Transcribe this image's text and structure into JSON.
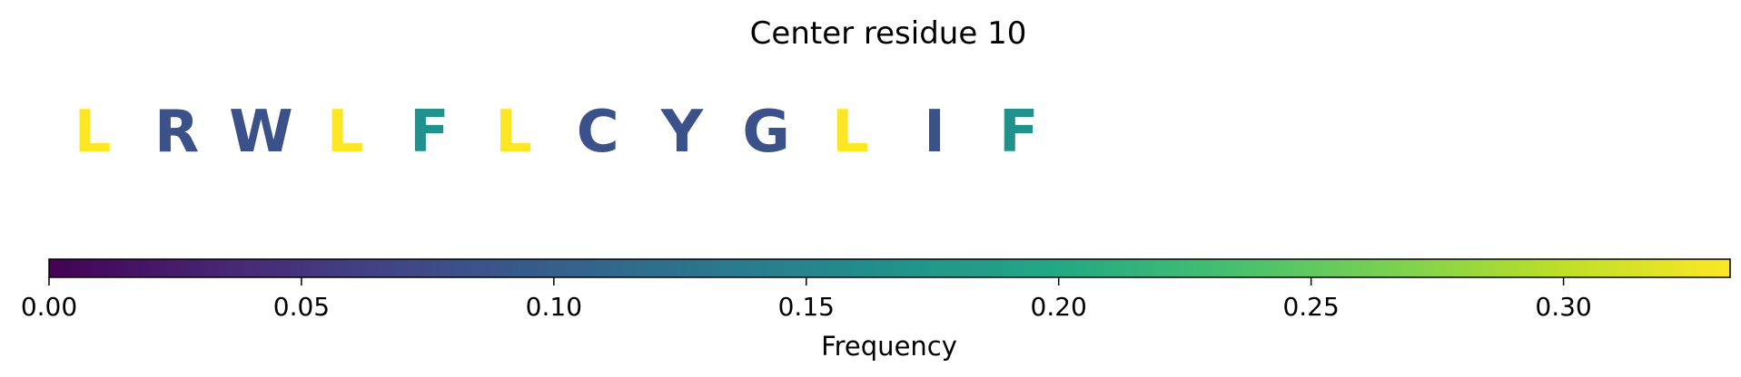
{
  "chart_data": {
    "type": "heatmap",
    "title": "Center residue 10",
    "residues": [
      {
        "letter": "L",
        "frequency": 0.333
      },
      {
        "letter": "R",
        "frequency": 0.083
      },
      {
        "letter": "W",
        "frequency": 0.083
      },
      {
        "letter": "L",
        "frequency": 0.333
      },
      {
        "letter": "F",
        "frequency": 0.167
      },
      {
        "letter": "L",
        "frequency": 0.333
      },
      {
        "letter": "C",
        "frequency": 0.083
      },
      {
        "letter": "Y",
        "frequency": 0.083
      },
      {
        "letter": "G",
        "frequency": 0.083
      },
      {
        "letter": "L",
        "frequency": 0.333
      },
      {
        "letter": "I",
        "frequency": 0.083
      },
      {
        "letter": "F",
        "frequency": 0.167
      }
    ],
    "colorbar": {
      "label": "Frequency",
      "colormap": "viridis",
      "range": [
        0,
        0.333
      ],
      "ticks": [
        0.0,
        0.05,
        0.1,
        0.15,
        0.2,
        0.25,
        0.3
      ],
      "tick_labels": [
        "0.00",
        "0.05",
        "0.10",
        "0.15",
        "0.20",
        "0.25",
        "0.30"
      ]
    }
  }
}
